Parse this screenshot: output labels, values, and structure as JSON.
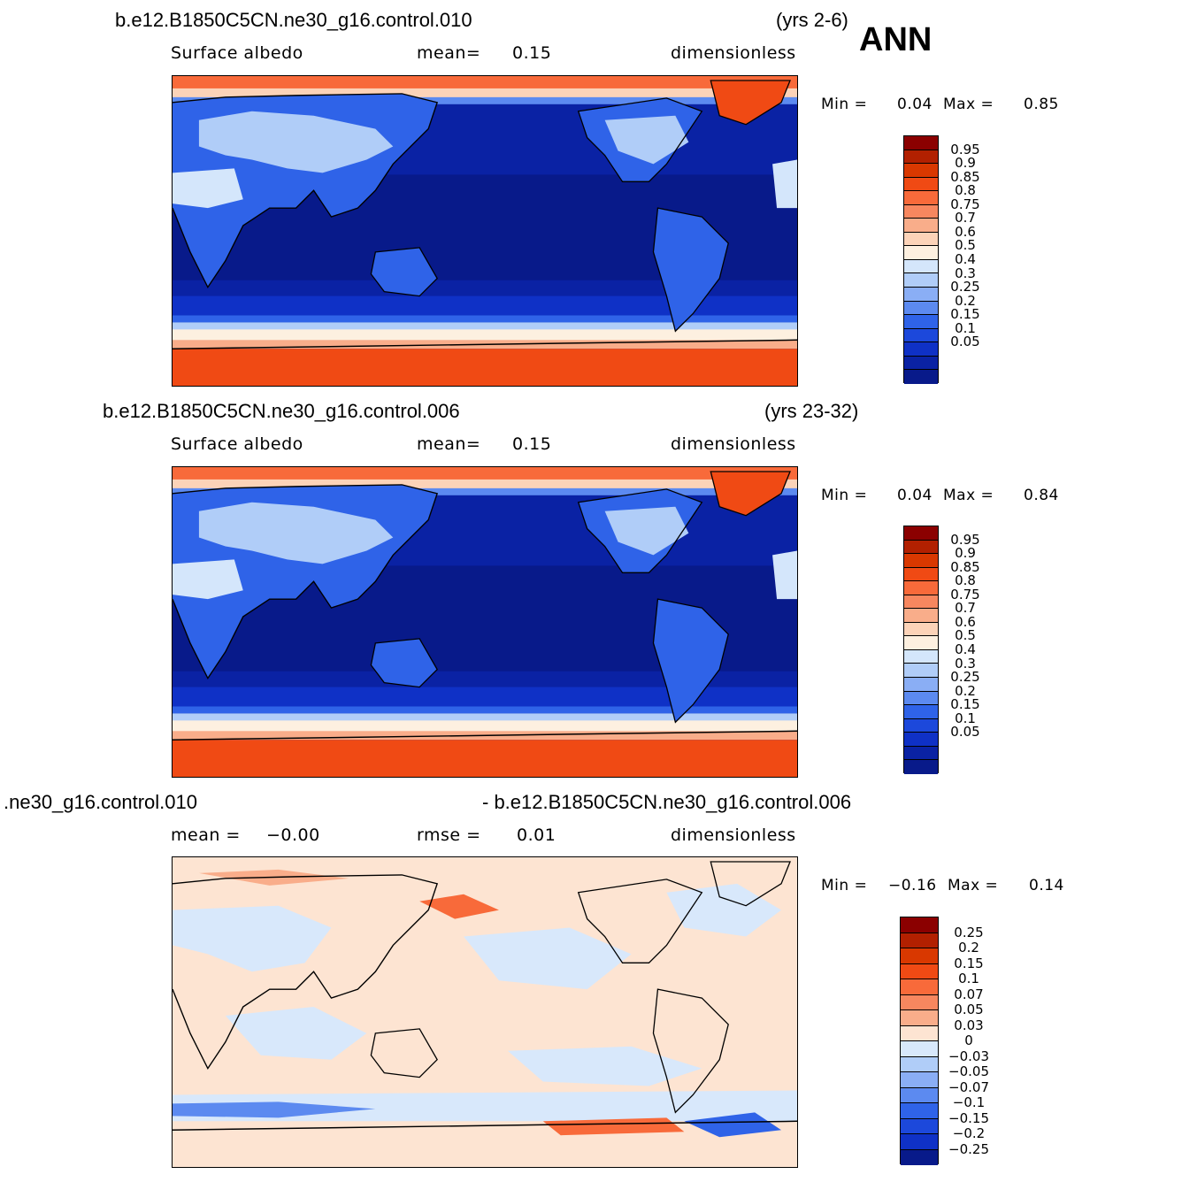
{
  "season": "ANN",
  "panels": [
    {
      "case": "b.e12.B1850C5CN.ne30_g16.control.010",
      "years": "(yrs 2-6)",
      "var": "Surface  albedo",
      "stat1_label": "mean=",
      "stat1_value": "0.15",
      "units": "dimensionless",
      "min_label": "Min  =",
      "min_value": "0.04",
      "max_label": "Max  =",
      "max_value": "0.85"
    },
    {
      "case": "b.e12.B1850C5CN.ne30_g16.control.006",
      "years": "(yrs 23-32)",
      "var": "Surface  albedo",
      "stat1_label": "mean=",
      "stat1_value": "0.15",
      "units": "dimensionless",
      "min_label": "Min  =",
      "min_value": "0.04",
      "max_label": "Max  =",
      "max_value": "0.84"
    },
    {
      "case_left": ".ne30_g16.control.010",
      "case_right": "- b.e12.B1850C5CN.ne30_g16.control.006",
      "stat1_label": "mean  =",
      "stat1_value": "−0.00",
      "stat2_label": "rmse  =",
      "stat2_value": "0.01",
      "units": "dimensionless",
      "min_label": "Min  =",
      "min_value": "−0.16",
      "max_label": "Max  =",
      "max_value": "0.14"
    }
  ],
  "colorbar_abs": {
    "labels": [
      "0.95",
      "0.9",
      "0.85",
      "0.8",
      "0.75",
      "0.7",
      "0.6",
      "0.5",
      "0.4",
      "0.3",
      "0.25",
      "0.2",
      "0.15",
      "0.1",
      "0.05"
    ],
    "colors": [
      "#8b0000",
      "#b22000",
      "#d93800",
      "#f04a14",
      "#f86a3a",
      "#f7875f",
      "#f9ad8a",
      "#fcd3b8",
      "#fdf0e0",
      "#d4e6fb",
      "#b0cdf8",
      "#8aaef5",
      "#5c8af0",
      "#2f63e8",
      "#1c48db",
      "#0f31c6",
      "#0a22a4",
      "#081a8a"
    ]
  },
  "colorbar_diff": {
    "labels": [
      "0.25",
      "0.2",
      "0.15",
      "0.1",
      "0.07",
      "0.05",
      "0.03",
      "0",
      "−0.03",
      "−0.05",
      "−0.07",
      "−0.1",
      "−0.15",
      "−0.2",
      "−0.25"
    ],
    "colors": [
      "#8b0000",
      "#b22000",
      "#d93800",
      "#f04a14",
      "#f86a3a",
      "#f7875f",
      "#f9ad8a",
      "#fde4d2",
      "#d8e8fb",
      "#b0cdf8",
      "#8aaef5",
      "#5c8af0",
      "#2f63e8",
      "#1c48db",
      "#0f31c6",
      "#081a8a"
    ]
  }
}
